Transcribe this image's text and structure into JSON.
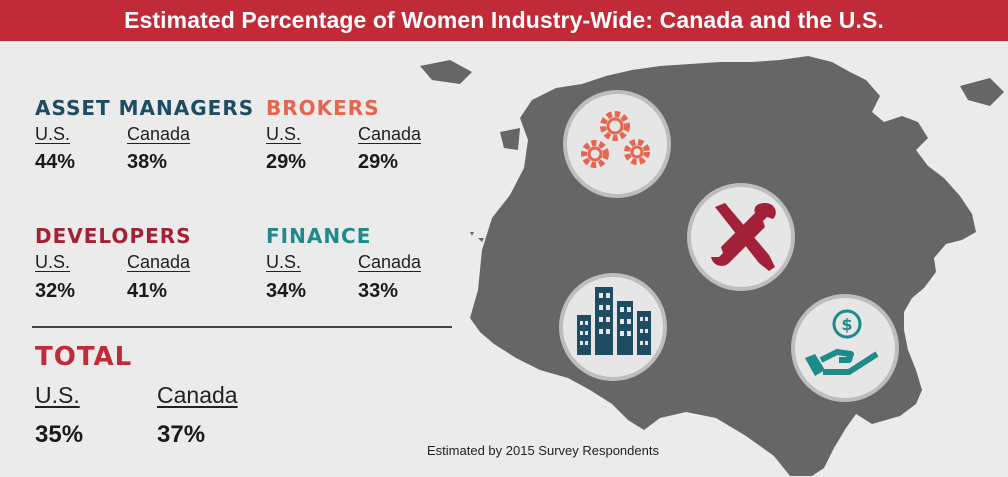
{
  "title": "Estimated Percentage of Women Industry-Wide: Canada and the U.S.",
  "colors": {
    "header": "#c12a37",
    "asset_managers": "#1e4c63",
    "brokers": "#e5654e",
    "developers": "#a32138",
    "finance": "#1e8a8a",
    "total": "#c12a37",
    "map": "#666666"
  },
  "categories": [
    {
      "name": "ASSET MANAGERS",
      "us_label": "U.S.",
      "canada_label": "Canada",
      "us_value": "44%",
      "canada_value": "38%"
    },
    {
      "name": "BROKERS",
      "us_label": "U.S.",
      "canada_label": "Canada",
      "us_value": "29%",
      "canada_value": "29%"
    },
    {
      "name": "DEVELOPERS",
      "us_label": "U.S.",
      "canada_label": "Canada",
      "us_value": "32%",
      "canada_value": "41%"
    },
    {
      "name": "FINANCE",
      "us_label": "U.S.",
      "canada_label": "Canada",
      "us_value": "34%",
      "canada_value": "33%"
    }
  ],
  "total": {
    "name": "TOTAL",
    "us_label": "U.S.",
    "canada_label": "Canada",
    "us_value": "35%",
    "canada_value": "37%"
  },
  "icons": [
    "gears-icon",
    "wrench-screwdriver-icon",
    "buildings-icon",
    "money-hand-icon"
  ],
  "footnote": "Estimated by 2015 Survey Respondents"
}
